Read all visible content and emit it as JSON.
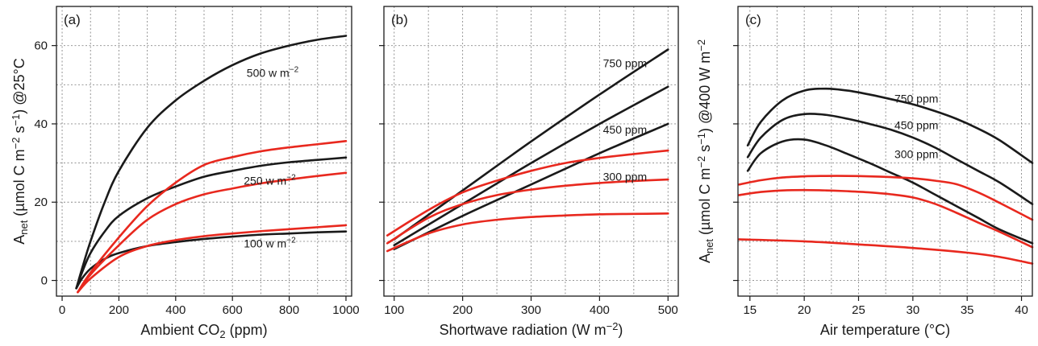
{
  "colors": {
    "black_series": "#1a1a1a",
    "red_series": "#e8281e"
  },
  "chart_data": [
    {
      "type": "line",
      "panel_label": "(a)",
      "xlabel": "Ambient CO2 (ppm)",
      "ylabel": "Anet (µmol C m−2 s−1) @25°C",
      "xlim": [
        -20,
        1020
      ],
      "ylim": [
        -4,
        70
      ],
      "xticks": [
        0,
        200,
        400,
        600,
        800,
        1000
      ],
      "yticks": [
        0,
        20,
        40,
        60
      ],
      "grid": true,
      "series": [
        {
          "color": "black",
          "x": [
            50,
            70,
            100,
            150,
            200,
            300,
            400,
            500,
            600,
            700,
            800,
            900,
            1000
          ],
          "y": [
            -2,
            3,
            10,
            20,
            28,
            39,
            46,
            51,
            55,
            58,
            60,
            61.5,
            62.5
          ]
        },
        {
          "color": "black",
          "x": [
            50,
            70,
            100,
            150,
            200,
            300,
            400,
            500,
            600,
            700,
            800,
            900,
            1000
          ],
          "y": [
            -2,
            2,
            7,
            12.5,
            16.5,
            21,
            24,
            26.5,
            28,
            29.3,
            30.2,
            30.8,
            31.4
          ]
        },
        {
          "color": "black",
          "x": [
            50,
            70,
            100,
            150,
            200,
            300,
            400,
            500,
            600,
            700,
            800,
            900,
            1000
          ],
          "y": [
            -2,
            0.5,
            3,
            5.5,
            7,
            8.8,
            9.8,
            10.6,
            11.2,
            11.7,
            12,
            12.3,
            12.5
          ]
        },
        {
          "color": "red",
          "x": [
            55,
            100,
            200,
            300,
            400,
            500,
            600,
            700,
            800,
            900,
            1000
          ],
          "y": [
            -3,
            2,
            11,
            19,
            25,
            29.5,
            31.5,
            33,
            34,
            34.8,
            35.6
          ]
        },
        {
          "color": "red",
          "x": [
            55,
            100,
            200,
            300,
            400,
            500,
            600,
            700,
            800,
            900,
            1000
          ],
          "y": [
            -3,
            1.5,
            9,
            15.5,
            19.5,
            22,
            23.5,
            24.8,
            25.8,
            26.7,
            27.5
          ]
        },
        {
          "color": "red",
          "x": [
            55,
            100,
            200,
            300,
            400,
            500,
            600,
            700,
            800,
            900,
            1000
          ],
          "y": [
            -3,
            0.5,
            6,
            8.8,
            10.3,
            11.3,
            12,
            12.6,
            13.1,
            13.6,
            14.1
          ]
        }
      ],
      "annotations": [
        {
          "text": "500 w m−2",
          "x": 650,
          "y": 53
        },
        {
          "text": "250 w m−2",
          "x": 640,
          "y": 25.5
        },
        {
          "text": "100 w m−2",
          "x": 640,
          "y": 9.5
        }
      ]
    },
    {
      "type": "line",
      "panel_label": "(b)",
      "xlabel": "Shortwave radiation (W m−2)",
      "ylabel": "",
      "xlim": [
        85,
        515
      ],
      "ylim": [
        -4,
        70
      ],
      "xticks": [
        100,
        200,
        300,
        400,
        500
      ],
      "yticks": [
        0,
        20,
        40,
        60
      ],
      "grid": true,
      "series": [
        {
          "color": "black",
          "x": [
            100,
            200,
            300,
            400,
            500
          ],
          "y": [
            10.5,
            23,
            35.5,
            47.5,
            59
          ]
        },
        {
          "color": "black",
          "x": [
            100,
            200,
            300,
            400,
            500
          ],
          "y": [
            9,
            19.5,
            30,
            40,
            49.5
          ]
        },
        {
          "color": "black",
          "x": [
            100,
            200,
            300,
            400,
            500
          ],
          "y": [
            8,
            16.5,
            24.5,
            32.5,
            40
          ]
        },
        {
          "color": "red",
          "x": [
            90,
            150,
            200,
            250,
            300,
            350,
            400,
            450,
            500
          ],
          "y": [
            11.5,
            18,
            22.5,
            25.5,
            28,
            30,
            31.3,
            32.3,
            33.2
          ]
        },
        {
          "color": "red",
          "x": [
            90,
            150,
            200,
            250,
            300,
            350,
            400,
            450,
            500
          ],
          "y": [
            9.5,
            16,
            19.5,
            21.8,
            23.2,
            24.2,
            24.9,
            25.4,
            25.8
          ]
        },
        {
          "color": "red",
          "x": [
            90,
            150,
            200,
            250,
            300,
            350,
            400,
            450,
            500
          ],
          "y": [
            7.5,
            12,
            14.3,
            15.5,
            16.2,
            16.6,
            16.9,
            17,
            17.1
          ]
        }
      ],
      "annotations": [
        {
          "text": "750 ppm",
          "x": 405,
          "y": 55.5
        },
        {
          "text": "450 ppm",
          "x": 405,
          "y": 38.5
        },
        {
          "text": "300 ppm",
          "x": 405,
          "y": 26.5
        }
      ]
    },
    {
      "type": "line",
      "panel_label": "(c)",
      "xlabel": "Air temperature (°C)",
      "ylabel": "Anet (µmol C m−2 s−1) @400 W m−2",
      "xlim": [
        13.9,
        41
      ],
      "ylim": [
        -4,
        70
      ],
      "xticks": [
        15,
        20,
        25,
        30,
        35,
        40
      ],
      "yticks": [
        0,
        20,
        40,
        60
      ],
      "grid": true,
      "series": [
        {
          "color": "black",
          "x": [
            14.8,
            16,
            18,
            20,
            22,
            24,
            26,
            28,
            30,
            32,
            34,
            36,
            38,
            41
          ],
          "y": [
            34.5,
            40.5,
            46,
            48.5,
            49,
            48.5,
            47.5,
            46.3,
            45,
            43.3,
            41.3,
            38.8,
            35.8,
            30
          ]
        },
        {
          "color": "black",
          "x": [
            14.8,
            16,
            18,
            20,
            22,
            24,
            26,
            28,
            30,
            32,
            34,
            36,
            38,
            41
          ],
          "y": [
            31.5,
            36.5,
            41,
            42.5,
            42.3,
            41.3,
            40,
            38.5,
            36.5,
            34,
            31,
            28,
            25,
            19.5
          ]
        },
        {
          "color": "black",
          "x": [
            14.8,
            16,
            18,
            20,
            22,
            24,
            26,
            28,
            30,
            32,
            34,
            36,
            38,
            41
          ],
          "y": [
            28,
            32.5,
            35.5,
            36,
            34.5,
            32.3,
            30,
            27.5,
            25,
            22,
            19,
            16,
            13,
            9.5
          ]
        },
        {
          "color": "red",
          "x": [
            14,
            16,
            18,
            20,
            22,
            24,
            26,
            28,
            30,
            32,
            34,
            36,
            38,
            41
          ],
          "y": [
            24.5,
            25.6,
            26.3,
            26.6,
            26.7,
            26.7,
            26.6,
            26.4,
            26.1,
            25.5,
            24.6,
            22.5,
            19.8,
            15.5
          ]
        },
        {
          "color": "red",
          "x": [
            14,
            16,
            18,
            20,
            22,
            24,
            26,
            28,
            30,
            32,
            34,
            36,
            38,
            41
          ],
          "y": [
            21.8,
            22.6,
            23,
            23.1,
            23,
            22.8,
            22.5,
            22,
            21.2,
            19.6,
            17.3,
            14.8,
            12.4,
            8.5
          ]
        },
        {
          "color": "red",
          "x": [
            14,
            20,
            25,
            30,
            35,
            38,
            41
          ],
          "y": [
            10.5,
            10,
            9.2,
            8.3,
            7.1,
            6,
            4.3
          ]
        }
      ],
      "annotations": [
        {
          "text": "750 ppm",
          "x": 28.3,
          "y": 46.5
        },
        {
          "text": "450 ppm",
          "x": 28.3,
          "y": 39.7
        },
        {
          "text": "300 ppm",
          "x": 28.3,
          "y": 32.3
        }
      ]
    }
  ]
}
